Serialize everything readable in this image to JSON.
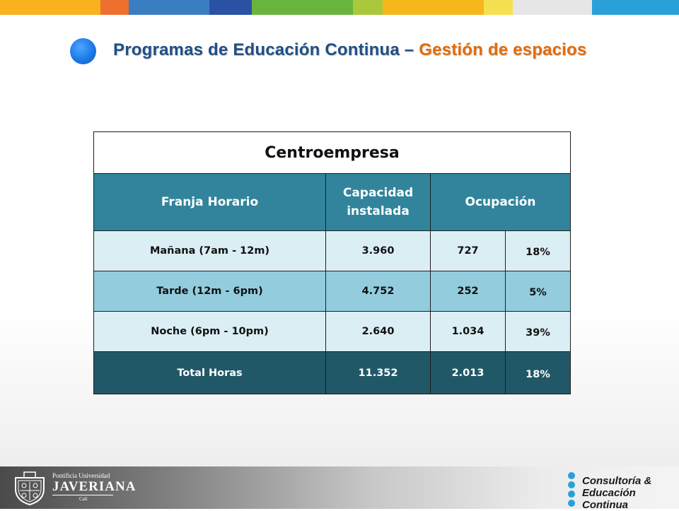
{
  "title": {
    "main": "Programas de Educación Continua – ",
    "accent": "Gestión de espacios"
  },
  "top_bar_colors": [
    "#f8b21d",
    "#ef6f2e",
    "#3a7ec2",
    "#2952a3",
    "#69b43f",
    "#aac83c",
    "#f6b71c",
    "#f5e050",
    "#e6e6e6",
    "#2aa0d8"
  ],
  "table": {
    "caption": "Centroempresa",
    "headers": {
      "franja": "Franja Horario",
      "capacidad_l1": "Capacidad",
      "capacidad_l2": "instalada",
      "ocupacion": "Ocupación"
    },
    "rows": [
      {
        "franja": "Mañana (7am - 12m)",
        "capacidad": "3.960",
        "ocupacion": "727",
        "porcentaje": "18%"
      },
      {
        "franja": "Tarde (12m - 6pm)",
        "capacidad": "4.752",
        "ocupacion": "252",
        "porcentaje": "5%"
      },
      {
        "franja": "Noche (6pm - 10pm)",
        "capacidad": "2.640",
        "ocupacion": "1.034",
        "porcentaje": "39%"
      }
    ],
    "total": {
      "franja": "Total Horas",
      "capacidad": "11.352",
      "ocupacion": "2.013",
      "porcentaje": "18%"
    }
  },
  "footer": {
    "javeriana_line1": "Pontificia Universidad",
    "javeriana_name": "JAVERIANA",
    "javeriana_city": "Cali",
    "consultoria_line1": "Consultoría &",
    "consultoria_line2": "Educación Continua"
  },
  "colors": {
    "title_main": "#1f4f86",
    "title_accent": "#e36c0a",
    "header_bg": "#31849b",
    "row_light": "#dbeef4",
    "row_mid": "#93cddd",
    "total_bg": "#215868"
  }
}
